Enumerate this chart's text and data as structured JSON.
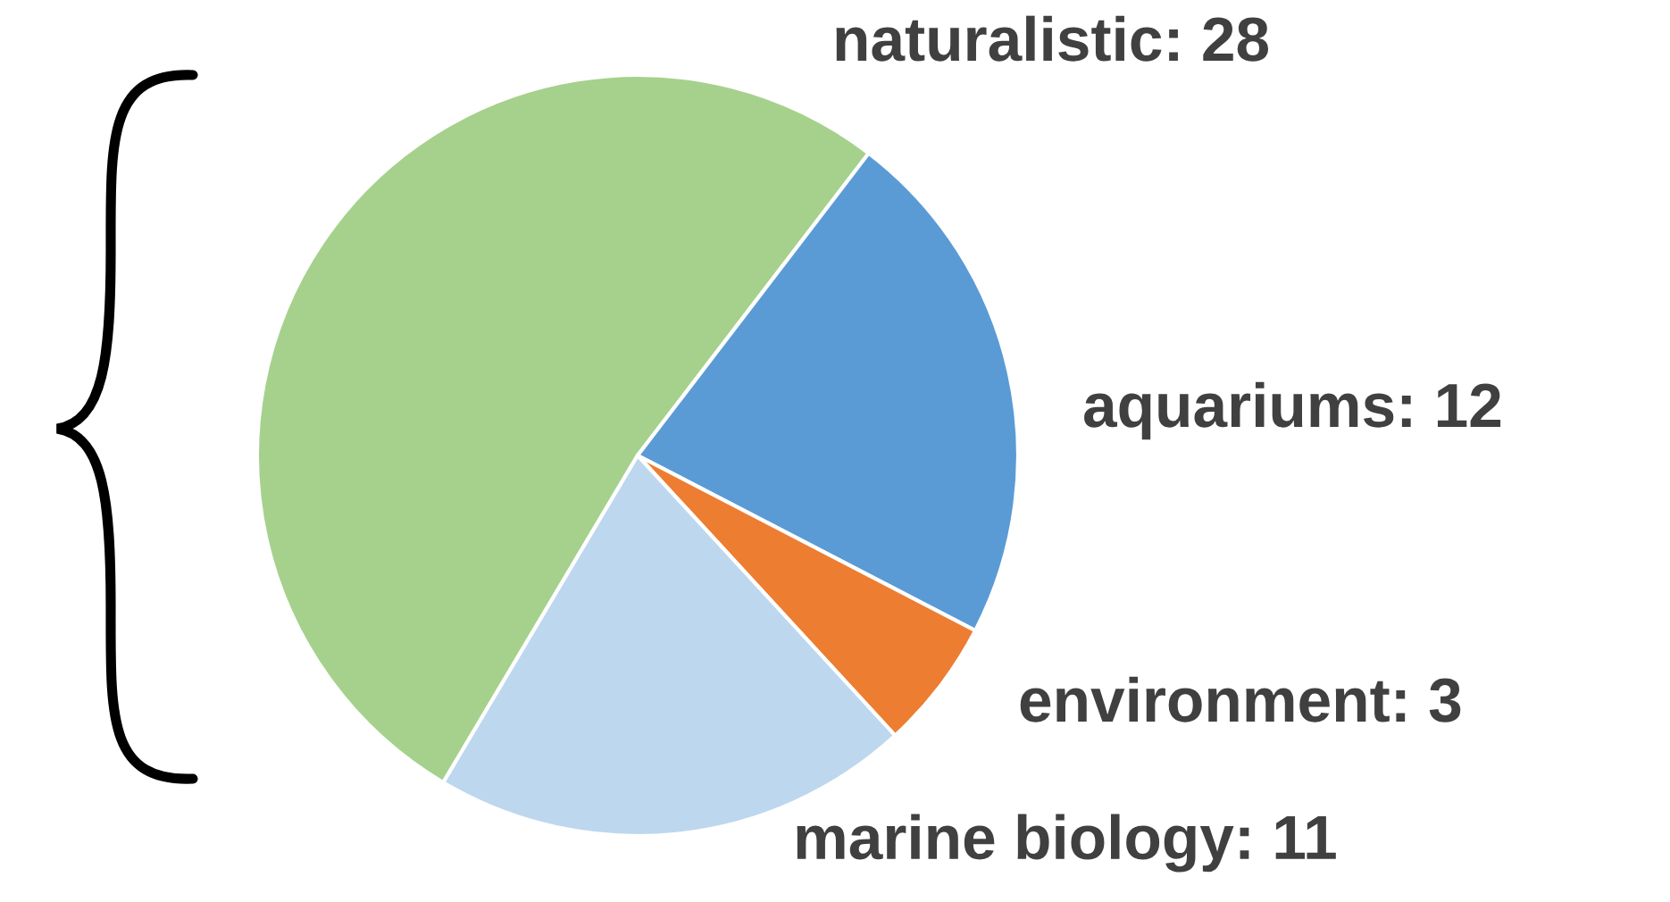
{
  "chart_data": {
    "type": "pie",
    "categories": [
      "naturalistic: 28",
      "aquariums: 12",
      "environment: 3",
      "marine biology: 11"
    ],
    "values": [
      28,
      12,
      3,
      11
    ],
    "colors": [
      "#a5d18c",
      "#5b9bd5",
      "#ed7d31",
      "#bdd7ee"
    ]
  }
}
